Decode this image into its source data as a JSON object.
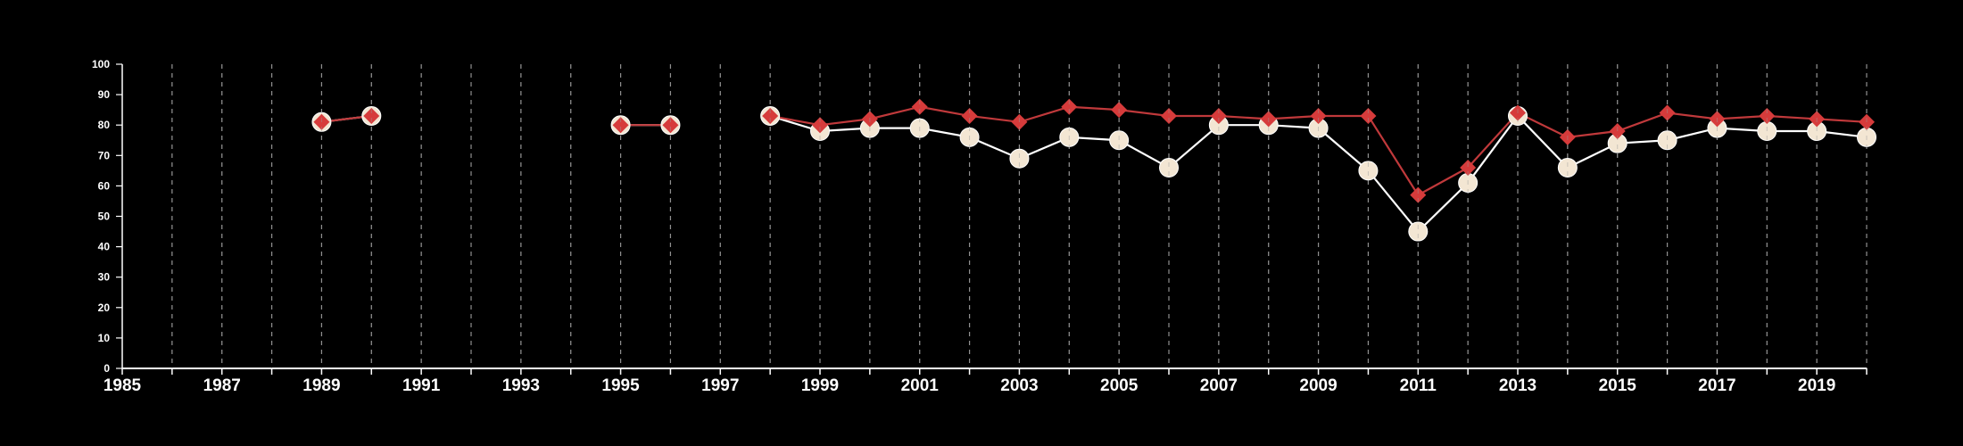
{
  "chart_data": {
    "type": "line",
    "x_domain": [
      1985,
      2020
    ],
    "ylim": [
      0,
      100
    ],
    "y_ticks": [
      0,
      10,
      20,
      30,
      40,
      50,
      60,
      70,
      80,
      90,
      100
    ],
    "x_tick_labels": [
      "1985",
      "1987",
      "1989",
      "1991",
      "1993",
      "1995",
      "1997",
      "1999",
      "2001",
      "2003",
      "2005",
      "2007",
      "2009",
      "2011",
      "2013",
      "2015",
      "2017",
      "2019"
    ],
    "vertical_grid": "dashed, every year",
    "background": "#000000",
    "series": [
      {
        "marker": "circle",
        "line_color": "#ffffff",
        "marker_color": "#f3e6d3",
        "points": [
          [
            1989,
            81
          ],
          [
            1990,
            83
          ],
          null,
          [
            1995,
            80
          ],
          [
            1996,
            80
          ],
          null,
          [
            1998,
            83
          ],
          [
            1999,
            78
          ],
          [
            2000,
            79
          ],
          [
            2001,
            79
          ],
          [
            2002,
            76
          ],
          [
            2003,
            69
          ],
          [
            2004,
            76
          ],
          [
            2005,
            75
          ],
          [
            2006,
            66
          ],
          [
            2007,
            80
          ],
          [
            2008,
            80
          ],
          [
            2009,
            79
          ],
          [
            2010,
            65
          ],
          [
            2011,
            45
          ],
          [
            2012,
            61
          ],
          [
            2013,
            83
          ],
          [
            2014,
            66
          ],
          [
            2015,
            74
          ],
          [
            2016,
            75
          ],
          [
            2017,
            79
          ],
          [
            2018,
            78
          ],
          [
            2019,
            78
          ],
          [
            2020,
            76
          ]
        ]
      },
      {
        "marker": "diamond",
        "line_color": "#c0393b",
        "marker_color": "#d63b3b",
        "points": [
          [
            1989,
            81
          ],
          [
            1990,
            83
          ],
          null,
          [
            1995,
            80
          ],
          [
            1996,
            80
          ],
          null,
          [
            1998,
            83
          ],
          [
            1999,
            80
          ],
          [
            2000,
            82
          ],
          [
            2001,
            86
          ],
          [
            2002,
            83
          ],
          [
            2003,
            81
          ],
          [
            2004,
            86
          ],
          [
            2005,
            85
          ],
          [
            2006,
            83
          ],
          [
            2007,
            83
          ],
          [
            2008,
            82
          ],
          [
            2009,
            83
          ],
          [
            2010,
            83
          ],
          [
            2011,
            57
          ],
          [
            2012,
            66
          ],
          [
            2013,
            84
          ],
          [
            2014,
            76
          ],
          [
            2015,
            78
          ],
          [
            2016,
            84
          ],
          [
            2017,
            82
          ],
          [
            2018,
            83
          ],
          [
            2019,
            82
          ],
          [
            2020,
            81
          ]
        ]
      }
    ]
  }
}
